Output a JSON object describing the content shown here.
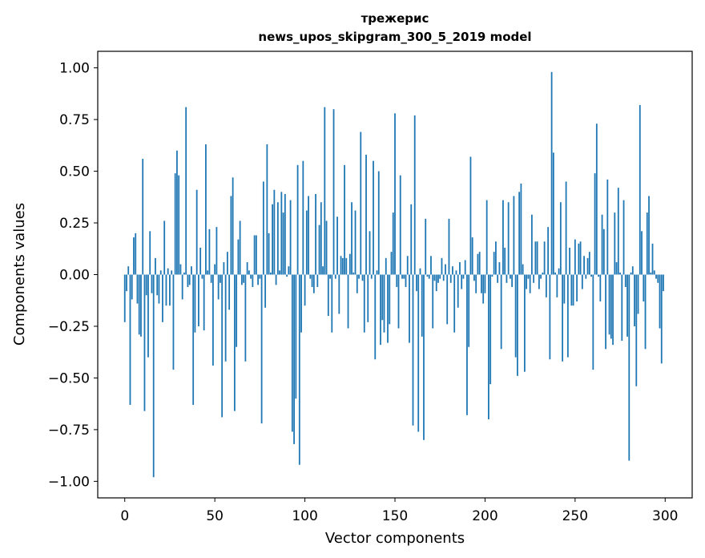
{
  "chart_data": {
    "type": "bar",
    "title_line1": "трежерис",
    "title_line2": "news_upos_skipgram_300_5_2019 model",
    "xlabel": "Vector components",
    "ylabel": "Components values",
    "xlim": [
      -15,
      315
    ],
    "ylim": [
      -1.08,
      1.08
    ],
    "xticks": [
      0,
      50,
      100,
      150,
      200,
      250,
      300
    ],
    "yticks": [
      1.0,
      0.75,
      0.5,
      0.25,
      0.0,
      -0.25,
      -0.5,
      -0.75,
      -1.0
    ],
    "ytick_labels": [
      "1.00",
      "0.75",
      "0.50",
      "0.25",
      "0.00",
      "−0.25",
      "−0.50",
      "−0.75",
      "−1.00"
    ],
    "xtick_labels": [
      "0",
      "50",
      "100",
      "150",
      "200",
      "250",
      "300"
    ],
    "bar_color": "#1f77b4",
    "values": [
      -0.23,
      -0.08,
      0.04,
      -0.63,
      -0.12,
      0.18,
      0.2,
      -0.14,
      -0.29,
      -0.3,
      0.56,
      -0.66,
      -0.1,
      -0.4,
      0.21,
      -0.09,
      -0.98,
      0.08,
      -0.1,
      -0.14,
      0.02,
      -0.23,
      0.26,
      -0.15,
      0.03,
      -0.15,
      0.02,
      -0.46,
      0.49,
      0.6,
      0.48,
      0.05,
      -0.12,
      0.01,
      0.81,
      -0.06,
      -0.05,
      0.04,
      -0.63,
      -0.28,
      0.41,
      -0.25,
      0.13,
      -0.02,
      -0.27,
      0.63,
      0.02,
      0.22,
      -0.04,
      -0.44,
      0.05,
      0.23,
      -0.12,
      -0.04,
      -0.69,
      0.06,
      -0.42,
      0.11,
      -0.17,
      0.38,
      0.47,
      -0.66,
      -0.35,
      0.17,
      0.26,
      -0.05,
      -0.04,
      -0.42,
      0.06,
      0.02,
      -0.02,
      -0.06,
      0.19,
      0.19,
      -0.05,
      -0.02,
      -0.72,
      0.45,
      -0.16,
      0.63,
      0.2,
      0.01,
      0.34,
      0.41,
      -0.05,
      0.35,
      0.02,
      0.4,
      0.3,
      0.39,
      -0.01,
      0.04,
      0.36,
      -0.76,
      -0.82,
      -0.6,
      0.53,
      -0.92,
      -0.28,
      0.55,
      -0.15,
      0.31,
      0.38,
      -0.02,
      -0.06,
      -0.09,
      0.39,
      -0.06,
      0.24,
      0.35,
      0.04,
      0.81,
      0.26,
      -0.2,
      -0.02,
      -0.28,
      0.8,
      -0.02,
      0.28,
      -0.19,
      0.09,
      0.08,
      0.53,
      0.08,
      -0.26,
      0.1,
      0.35,
      0.01,
      0.31,
      -0.09,
      -0.02,
      0.69,
      -0.03,
      -0.28,
      0.58,
      -0.23,
      0.21,
      -0.02,
      0.55,
      -0.41,
      0.02,
      0.5,
      -0.34,
      -0.22,
      -0.28,
      0.08,
      -0.33,
      -0.24,
      0.11,
      0.3,
      0.78,
      -0.06,
      -0.26,
      0.48,
      -0.02,
      -0.02,
      -0.06,
      0.09,
      -0.33,
      0.34,
      -0.73,
      0.77,
      -0.08,
      -0.76,
      0.03,
      -0.3,
      -0.8,
      0.27,
      -0.01,
      -0.02,
      0.09,
      -0.26,
      -0.03,
      -0.08,
      -0.04,
      -0.02,
      0.08,
      -0.03,
      0.05,
      -0.24,
      0.27,
      -0.04,
      0.04,
      -0.28,
      0.02,
      -0.16,
      0.06,
      -0.07,
      -0.02,
      0.07,
      -0.68,
      -0.35,
      0.57,
      0.18,
      -0.03,
      -0.09,
      0.1,
      0.11,
      -0.09,
      -0.14,
      -0.09,
      0.36,
      -0.7,
      -0.53,
      -0.01,
      0.11,
      0.16,
      -0.04,
      0.06,
      -0.36,
      0.36,
      0.13,
      -0.04,
      0.35,
      -0.02,
      -0.06,
      0.38,
      -0.4,
      -0.49,
      0.4,
      0.44,
      0.05,
      -0.47,
      -0.07,
      -0.02,
      -0.09,
      0.29,
      -0.04,
      0.16,
      0.16,
      -0.07,
      -0.02,
      0.01,
      0.16,
      -0.11,
      0.23,
      -0.41,
      0.98,
      0.59,
      0.01,
      -0.11,
      0.03,
      0.35,
      -0.42,
      -0.14,
      0.45,
      -0.4,
      0.13,
      -0.15,
      -0.15,
      0.17,
      -0.13,
      0.15,
      0.16,
      -0.07,
      0.09,
      -0.02,
      0.08,
      0.11,
      -0.01,
      -0.46,
      0.49,
      0.73,
      -0.01,
      -0.13,
      0.29,
      0.22,
      -0.36,
      0.46,
      -0.29,
      -0.31,
      -0.34,
      0.3,
      0.06,
      0.42,
      0.01,
      -0.32,
      0.36,
      -0.06,
      -0.3,
      -0.9,
      0.01,
      0.04,
      -0.25,
      -0.54,
      -0.19,
      0.82,
      0.21,
      -0.13,
      -0.36,
      0.3,
      0.38,
      0.01,
      0.15,
      0.02,
      -0.02,
      -0.04,
      -0.26,
      -0.43,
      -0.08
    ]
  }
}
